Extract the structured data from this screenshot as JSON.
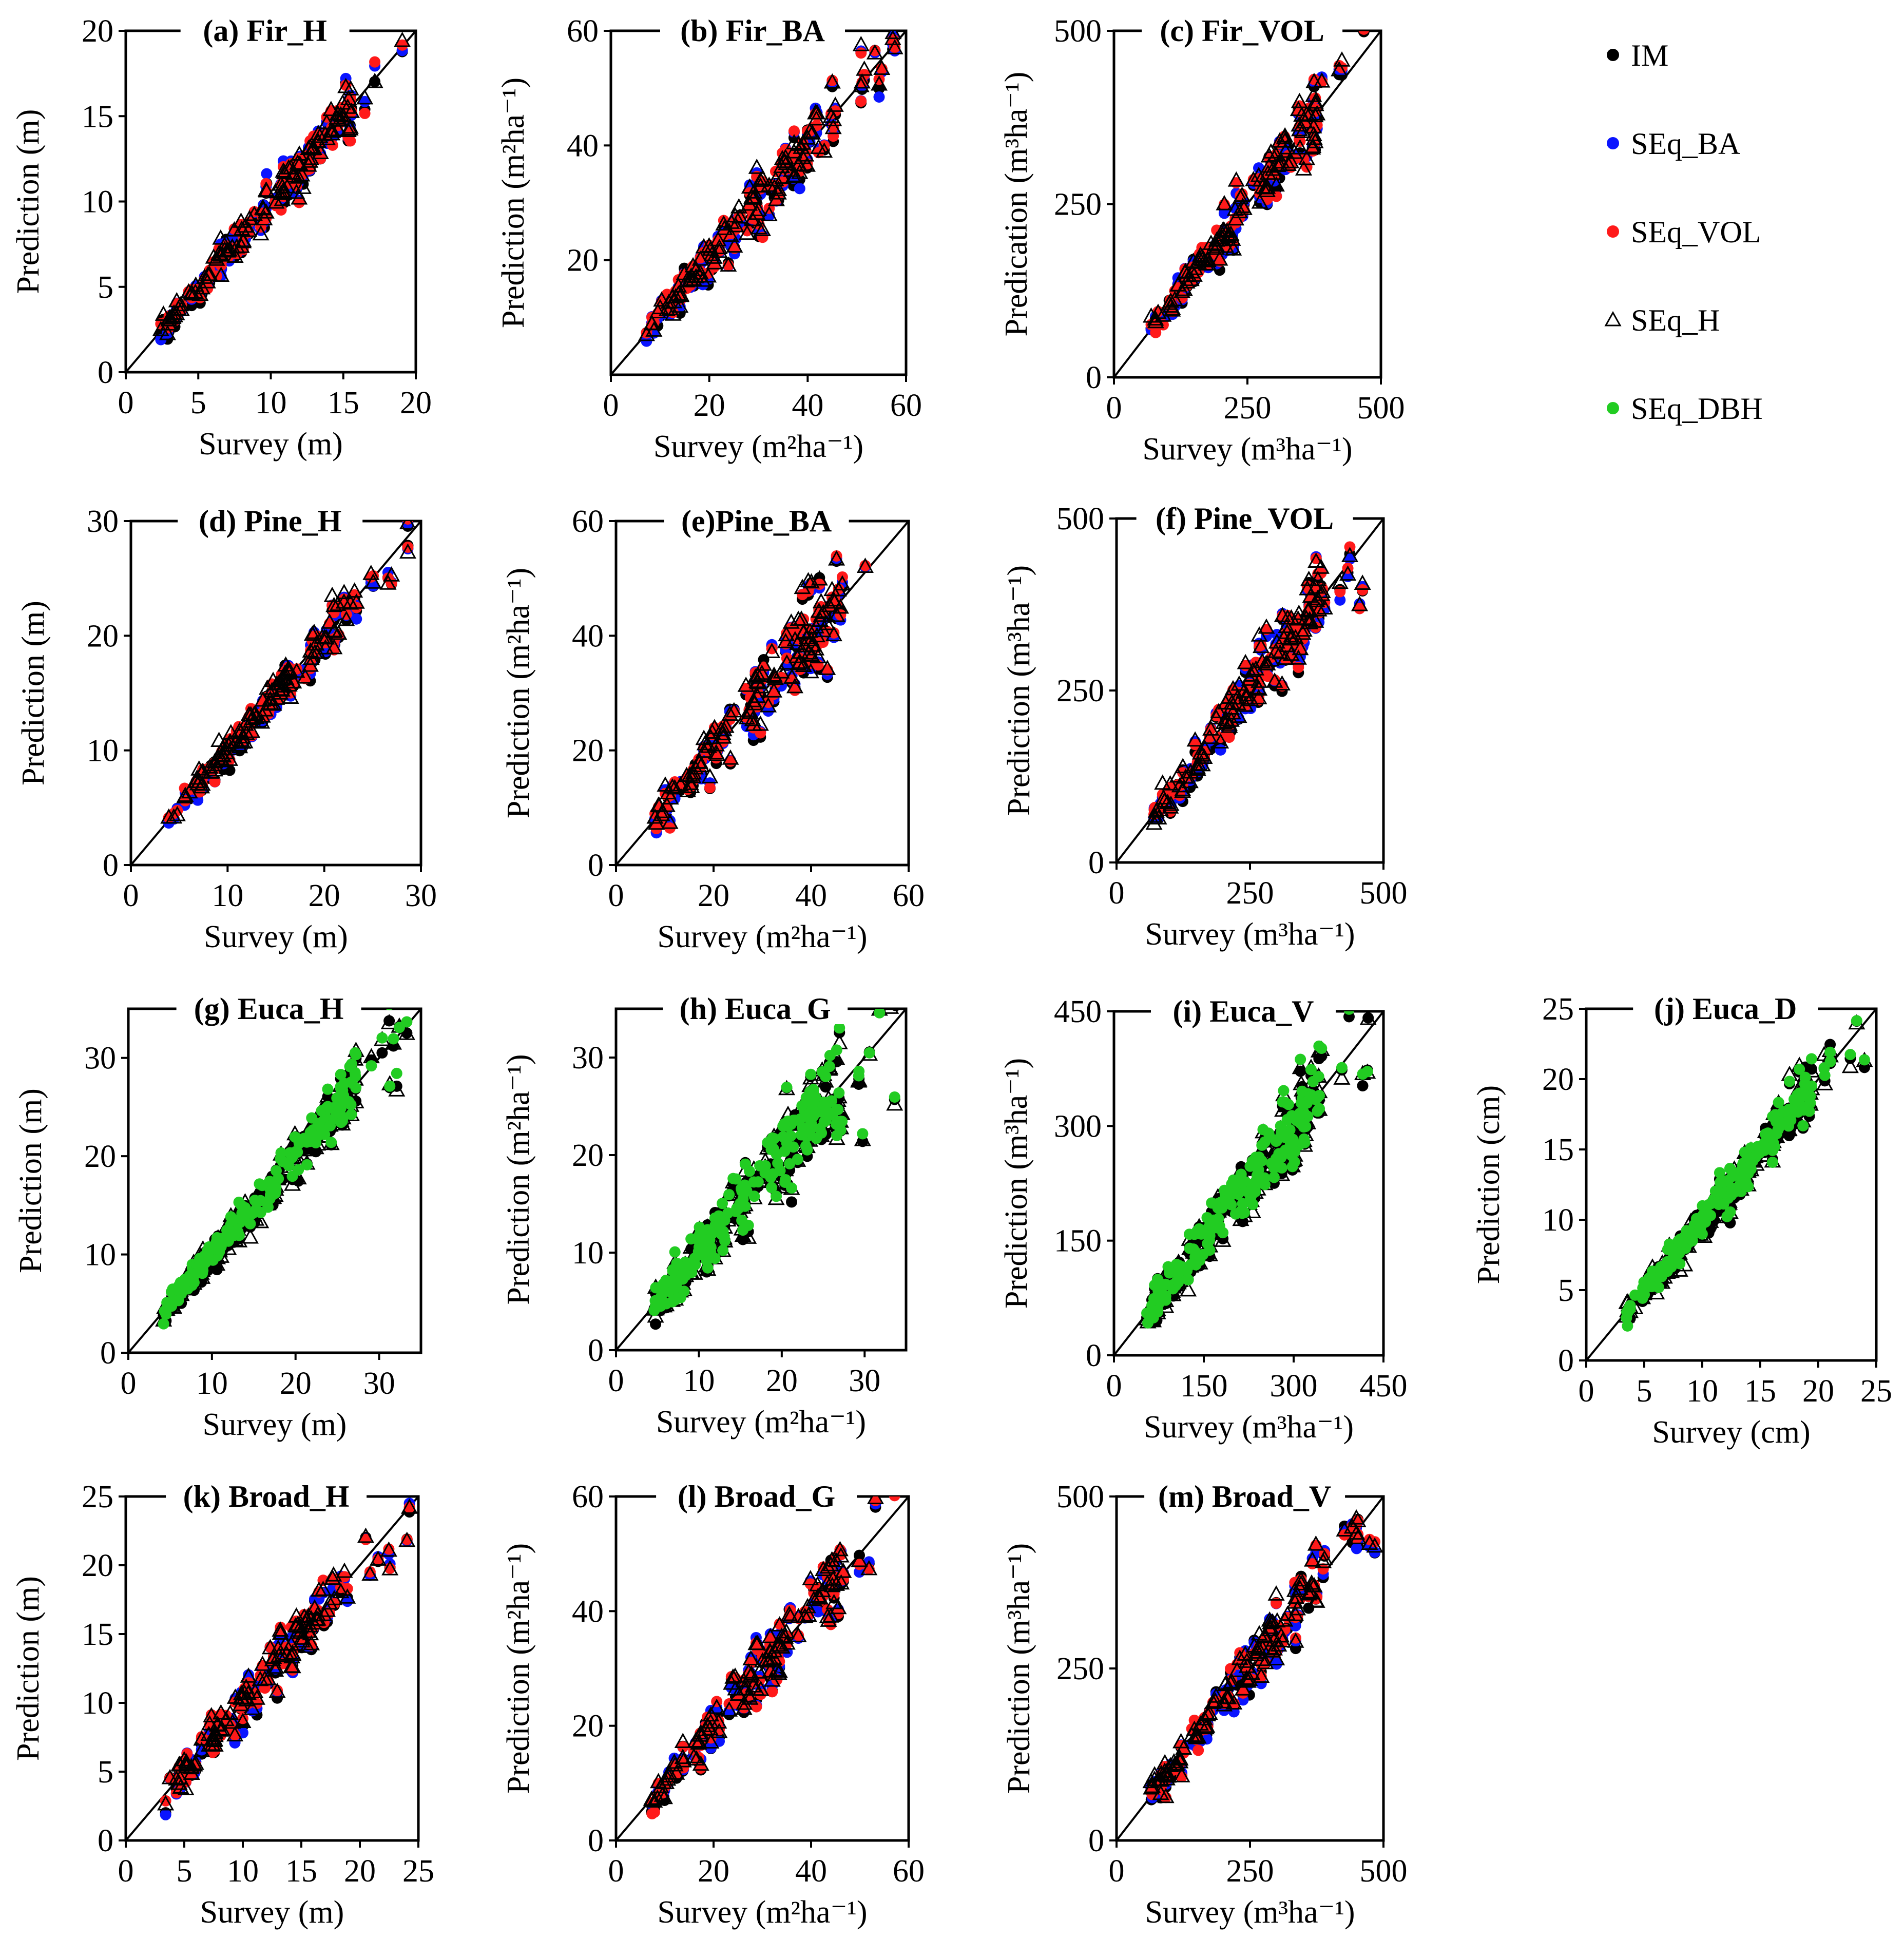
{
  "figure": {
    "legend": [
      {
        "key": "IM",
        "label": "IM",
        "color": "#000000",
        "marker": "circle"
      },
      {
        "key": "SEq_BA",
        "label": "SEq_BA",
        "color": "#0a14ff",
        "marker": "circle"
      },
      {
        "key": "SEq_VOL",
        "label": "SEq_VOL",
        "color": "#ff1a1a",
        "marker": "circle"
      },
      {
        "key": "SEq_H",
        "label": "SEq_H",
        "color": "#000000",
        "marker": "triangle"
      },
      {
        "key": "SEq_DBH",
        "label": "SEq_DBH",
        "color": "#22cc22",
        "marker": "circle"
      }
    ]
  },
  "chart_data": [
    {
      "id": "a",
      "type": "scatter",
      "title": "(a) Fir_H",
      "xlabel": "Survey (m)",
      "ylabel": "Prediction (m)",
      "xlim": [
        0,
        20
      ],
      "ylim": [
        0,
        20
      ],
      "xticks": [
        "0",
        "5",
        "10",
        "15",
        "20"
      ],
      "yticks": [
        "0",
        "5",
        "10",
        "15",
        "20"
      ],
      "reference_line": "1:1",
      "series": [
        "IM",
        "SEq_BA",
        "SEq_VOL",
        "SEq_H"
      ],
      "n_points": 120,
      "point_spread": 0.09,
      "seed": 11
    },
    {
      "id": "b",
      "type": "scatter",
      "title": "(b) Fir_BA",
      "xlabel": "Survey (m²ha⁻¹)",
      "ylabel": "Prediction (m²ha⁻¹)",
      "xlim": [
        0,
        60
      ],
      "ylim": [
        0,
        60
      ],
      "xticks": [
        "0",
        "20",
        "40",
        "60"
      ],
      "yticks": [
        "20",
        "40",
        "60"
      ],
      "reference_line": "1:1",
      "series": [
        "IM",
        "SEq_BA",
        "SEq_VOL",
        "SEq_H"
      ],
      "n_points": 120,
      "point_spread": 0.14,
      "seed": 12
    },
    {
      "id": "c",
      "type": "scatter",
      "title": "(c) Fir_VOL",
      "xlabel": "Survey (m³ha⁻¹)",
      "ylabel": "Predication (m³ha⁻¹)",
      "xlim": [
        0,
        500
      ],
      "ylim": [
        0,
        500
      ],
      "xticks": [
        "0",
        "250",
        "500"
      ],
      "yticks": [
        "0",
        "250",
        "500"
      ],
      "reference_line": "1:1",
      "series": [
        "IM",
        "SEq_BA",
        "SEq_VOL",
        "SEq_H"
      ],
      "n_points": 120,
      "point_spread": 0.11,
      "seed": 13
    },
    {
      "id": "d",
      "type": "scatter",
      "title": "(d) Pine_H",
      "xlabel": "Survey (m)",
      "ylabel": "Prediction (m)",
      "xlim": [
        0,
        30
      ],
      "ylim": [
        0,
        30
      ],
      "xticks": [
        "0",
        "10",
        "20",
        "30"
      ],
      "yticks": [
        "0",
        "10",
        "20",
        "30"
      ],
      "reference_line": "1:1",
      "series": [
        "IM",
        "SEq_BA",
        "SEq_VOL",
        "SEq_H"
      ],
      "n_points": 120,
      "point_spread": 0.07,
      "seed": 14
    },
    {
      "id": "e",
      "type": "scatter",
      "title": "(e)Pine_BA",
      "xlabel": "Survey (m²ha⁻¹)",
      "ylabel": "Prediction (m²ha⁻¹)",
      "xlim": [
        0,
        60
      ],
      "ylim": [
        0,
        60
      ],
      "xticks": [
        "0",
        "20",
        "40",
        "60"
      ],
      "yticks": [
        "0",
        "20",
        "40",
        "60"
      ],
      "reference_line": "1:1",
      "series": [
        "IM",
        "SEq_BA",
        "SEq_VOL",
        "SEq_H"
      ],
      "n_points": 120,
      "point_spread": 0.16,
      "seed": 15
    },
    {
      "id": "f",
      "type": "scatter",
      "title": "(f) Pine_VOL",
      "xlabel": "Survey (m³ha⁻¹)",
      "ylabel": "Prediction (m³ha⁻¹)",
      "xlim": [
        0,
        500
      ],
      "ylim": [
        0,
        500
      ],
      "xticks": [
        "0",
        "250",
        "500"
      ],
      "yticks": [
        "0",
        "250",
        "500"
      ],
      "reference_line": "1:1",
      "series": [
        "IM",
        "SEq_BA",
        "SEq_VOL",
        "SEq_H"
      ],
      "n_points": 120,
      "point_spread": 0.15,
      "seed": 16
    },
    {
      "id": "g",
      "type": "scatter",
      "title": "(g) Euca_H",
      "xlabel": "Survey (m)",
      "ylabel": "Prediction (m)",
      "xlim": [
        0,
        35
      ],
      "ylim": [
        0,
        35
      ],
      "xticks": [
        "0",
        "10",
        "20",
        "30"
      ],
      "yticks": [
        "0",
        "10",
        "20",
        "30"
      ],
      "reference_line": "1:1",
      "series": [
        "IM",
        "SEq_H",
        "SEq_DBH"
      ],
      "n_points": 200,
      "point_spread": 0.1,
      "seed": 17
    },
    {
      "id": "h",
      "type": "scatter",
      "title": "(h) Euca_G",
      "xlabel": "Survey (m²ha⁻¹)",
      "ylabel": "Prediction (m²ha⁻¹)",
      "xlim": [
        0,
        35
      ],
      "ylim": [
        0,
        35
      ],
      "xticks": [
        "0",
        "10",
        "20",
        "30"
      ],
      "yticks": [
        "0",
        "10",
        "20",
        "30"
      ],
      "reference_line": "1:1",
      "series": [
        "IM",
        "SEq_H",
        "SEq_DBH"
      ],
      "n_points": 200,
      "point_spread": 0.18,
      "seed": 18
    },
    {
      "id": "i",
      "type": "scatter",
      "title": "(i) Euca_V",
      "xlabel": "Survey (m³ha⁻¹)",
      "ylabel": "Prediction (m³ha⁻¹)",
      "xlim": [
        0,
        450
      ],
      "ylim": [
        0,
        450
      ],
      "xticks": [
        "0",
        "150",
        "300",
        "450"
      ],
      "yticks": [
        "0",
        "150",
        "300",
        "450"
      ],
      "reference_line": "1:1",
      "series": [
        "IM",
        "SEq_H",
        "SEq_DBH"
      ],
      "n_points": 200,
      "point_spread": 0.16,
      "seed": 19
    },
    {
      "id": "j",
      "type": "scatter",
      "title": "(j) Euca_D",
      "xlabel": "Survey (cm)",
      "ylabel": "Prediction (cm)",
      "xlim": [
        0,
        25
      ],
      "ylim": [
        0,
        25
      ],
      "xticks": [
        "0",
        "5",
        "10",
        "15",
        "20",
        "25"
      ],
      "yticks": [
        "0",
        "5",
        "10",
        "15",
        "20",
        "25"
      ],
      "reference_line": "1:1",
      "series": [
        "IM",
        "SEq_H",
        "SEq_DBH"
      ],
      "n_points": 200,
      "point_spread": 0.09,
      "seed": 20
    },
    {
      "id": "k",
      "type": "scatter",
      "title": "(k) Broad_H",
      "xlabel": "Survey (m)",
      "ylabel": "Prediction (m)",
      "xlim": [
        0,
        25
      ],
      "ylim": [
        0,
        25
      ],
      "xticks": [
        "0",
        "5",
        "10",
        "15",
        "20",
        "25"
      ],
      "yticks": [
        "0",
        "5",
        "10",
        "15",
        "20",
        "25"
      ],
      "reference_line": "1:1",
      "series": [
        "IM",
        "SEq_BA",
        "SEq_VOL",
        "SEq_H"
      ],
      "n_points": 120,
      "point_spread": 0.13,
      "seed": 21
    },
    {
      "id": "l",
      "type": "scatter",
      "title": "(l) Broad_G",
      "xlabel": "Survey (m²ha⁻¹)",
      "ylabel": "Prediction (m²ha⁻¹)",
      "xlim": [
        0,
        60
      ],
      "ylim": [
        0,
        60
      ],
      "xticks": [
        "0",
        "20",
        "40",
        "60"
      ],
      "yticks": [
        "0",
        "20",
        "40",
        "60"
      ],
      "reference_line": "1:1",
      "series": [
        "IM",
        "SEq_BA",
        "SEq_VOL",
        "SEq_H"
      ],
      "n_points": 120,
      "point_spread": 0.14,
      "seed": 22
    },
    {
      "id": "m",
      "type": "scatter",
      "title": "(m) Broad_V",
      "xlabel": "Survey (m³ha⁻¹)",
      "ylabel": "Prediction (m³ha⁻¹)",
      "xlim": [
        0,
        500
      ],
      "ylim": [
        0,
        500
      ],
      "xticks": [
        "0",
        "250",
        "500"
      ],
      "yticks": [
        "0",
        "250",
        "500"
      ],
      "reference_line": "1:1",
      "series": [
        "IM",
        "SEq_BA",
        "SEq_VOL",
        "SEq_H"
      ],
      "n_points": 120,
      "point_spread": 0.11,
      "seed": 23
    }
  ]
}
